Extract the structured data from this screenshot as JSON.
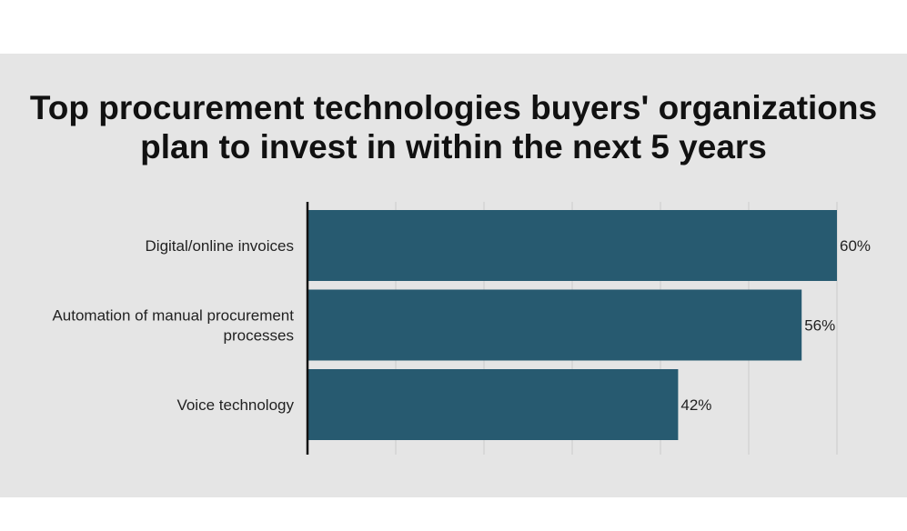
{
  "chart_data": {
    "type": "bar",
    "orientation": "horizontal",
    "title": "Top procurement technologies buyers' organizations plan to invest in within the next 5 years",
    "title_lines": [
      "Top procurement technologies buyers' organizations",
      "plan to invest in within the next 5 years"
    ],
    "categories": [
      [
        "Digital/online invoices"
      ],
      [
        "Automation of manual procurement",
        "processes"
      ],
      [
        "Voice technology"
      ]
    ],
    "values": [
      60,
      56,
      42
    ],
    "value_labels": [
      "60%",
      "56%",
      "42%"
    ],
    "xlim": [
      0,
      60
    ],
    "grid": true,
    "bar_color": "#275a70",
    "background_color": "#e5e5e5"
  }
}
